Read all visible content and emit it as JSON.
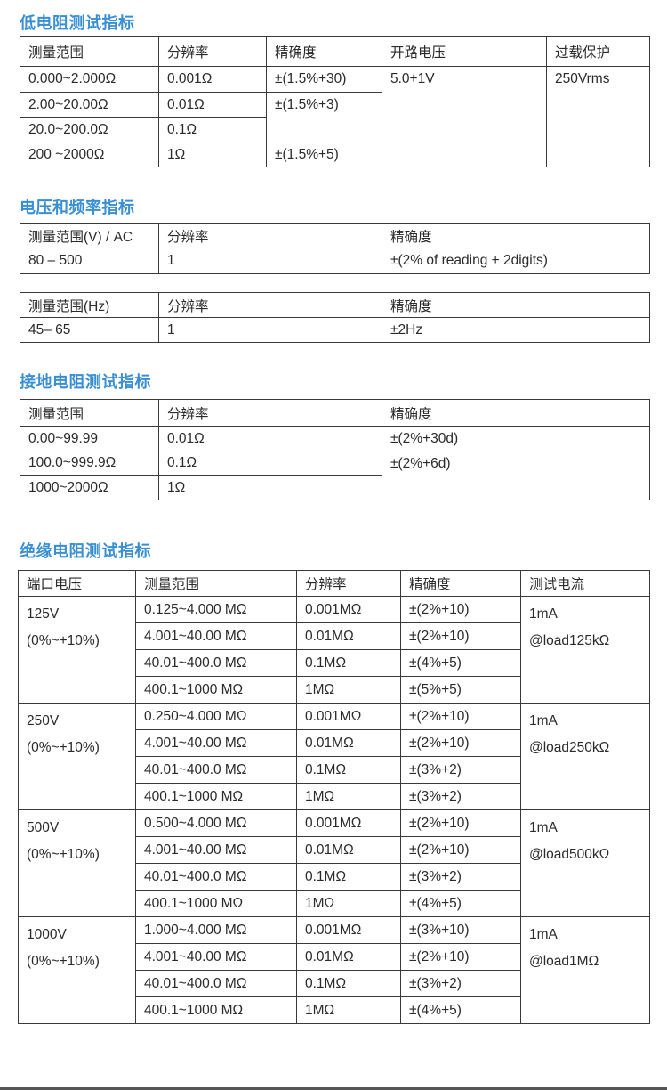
{
  "low_resistance": {
    "title": "低电阻测试指标",
    "headers": [
      "测量范围",
      "分辨率",
      "精确度",
      "开路电压",
      "过载保护"
    ],
    "rows": [
      {
        "range": "0.000~2.000Ω",
        "resolution": "0.001Ω"
      },
      {
        "range": "2.00~20.00Ω",
        "resolution": "0.01Ω"
      },
      {
        "range": "20.0~200.0Ω",
        "resolution": "0.1Ω"
      },
      {
        "range": "200 ~2000Ω",
        "resolution": "1Ω"
      }
    ],
    "accuracy": [
      "±(1.5%+30)",
      "±(1.5%+3)",
      "±(1.5%+5)"
    ],
    "open_voltage": "5.0+1V",
    "overload": "250Vrms"
  },
  "voltage_frequency": {
    "title": "电压和频率指标",
    "voltage_headers": [
      "测量范围(V) / AC",
      "分辨率",
      "精确度"
    ],
    "voltage_row": [
      "80 – 500",
      "1",
      "±(2% of reading + 2digits)"
    ],
    "freq_headers": [
      "测量范围(Hz)",
      "分辨率",
      "精确度"
    ],
    "freq_row": [
      "45– 65",
      "1",
      "±2Hz"
    ]
  },
  "ground_resistance": {
    "title": "接地电阻测试指标",
    "headers": [
      "测量范围",
      "分辨率",
      "精确度"
    ],
    "rows": [
      {
        "range": "0.00~99.99",
        "resolution": "0.01Ω"
      },
      {
        "range": "100.0~999.9Ω",
        "resolution": "0.1Ω"
      },
      {
        "range": "1000~2000Ω",
        "resolution": "1Ω"
      }
    ],
    "accuracy": [
      "±(2%+30d)",
      "±(2%+6d)"
    ]
  },
  "insulation": {
    "title": "绝缘电阻测试指标",
    "headers": [
      "端口电压",
      "测量范围",
      "分辨率",
      "精确度",
      "测试电流"
    ],
    "groups": [
      {
        "voltage": "125V",
        "tolerance": "(0%~+10%)",
        "current": "1mA",
        "load": "@load125kΩ",
        "rows": [
          [
            "0.125~4.000 MΩ",
            "0.001MΩ",
            "±(2%+10)"
          ],
          [
            "4.001~40.00 MΩ",
            "0.01MΩ",
            "±(2%+10)"
          ],
          [
            "40.01~400.0 MΩ",
            "0.1MΩ",
            "±(4%+5)"
          ],
          [
            "400.1~1000 MΩ",
            "1MΩ",
            "±(5%+5)"
          ]
        ]
      },
      {
        "voltage": "250V",
        "tolerance": "(0%~+10%)",
        "current": "1mA",
        "load": "@load250kΩ",
        "rows": [
          [
            "0.250~4.000 MΩ",
            "0.001MΩ",
            "±(2%+10)"
          ],
          [
            "4.001~40.00 MΩ",
            "0.01MΩ",
            "±(2%+10)"
          ],
          [
            "40.01~400.0 MΩ",
            "0.1MΩ",
            "±(3%+2)"
          ],
          [
            "400.1~1000 MΩ",
            "1MΩ",
            "±(3%+2)"
          ]
        ]
      },
      {
        "voltage": "500V",
        "tolerance": "(0%~+10%)",
        "current": "1mA",
        "load": "@load500kΩ",
        "rows": [
          [
            "0.500~4.000 MΩ",
            "0.001MΩ",
            "±(2%+10)"
          ],
          [
            "4.001~40.00 MΩ",
            "0.01MΩ",
            "±(2%+10)"
          ],
          [
            "40.01~400.0 MΩ",
            "0.1MΩ",
            "±(3%+2)"
          ],
          [
            "400.1~1000 MΩ",
            "1MΩ",
            "±(4%+5)"
          ]
        ]
      },
      {
        "voltage": "1000V",
        "tolerance": "(0%~+10%)",
        "current": "1mA",
        "load": "@load1MΩ",
        "rows": [
          [
            "1.000~4.000 MΩ",
            "0.001MΩ",
            "±(3%+10)"
          ],
          [
            "4.001~40.00 MΩ",
            "0.01MΩ",
            "±(2%+10)"
          ],
          [
            "40.01~400.0 MΩ",
            "0.1MΩ",
            "±(3%+2)"
          ],
          [
            "400.1~1000 MΩ",
            "1MΩ",
            "±(4%+5)"
          ]
        ]
      }
    ]
  },
  "colors": {
    "title": "#3a8fd2",
    "border": "#3a3a3a",
    "text": "#2a2a2a"
  }
}
